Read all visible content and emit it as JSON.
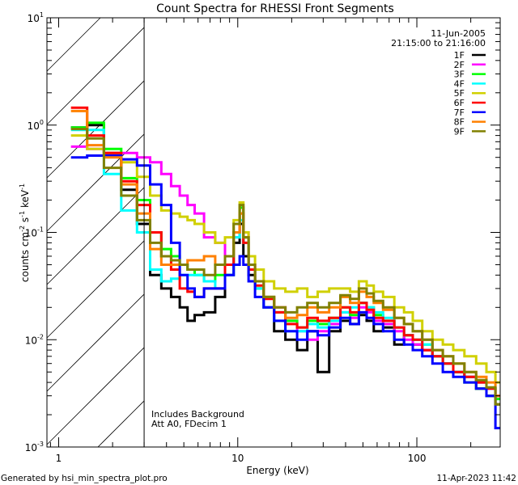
{
  "chart_data": {
    "type": "line",
    "title": "Count Spectra for RHESSI Front Segments",
    "xlabel": "Energy (keV)",
    "ylabel": "counts cm",
    "ylabel_parts": [
      "counts cm",
      "-2",
      " s",
      "-1",
      " keV",
      "-1"
    ],
    "xscale": "log",
    "yscale": "log",
    "xlim": [
      0.86,
      292
    ],
    "ylim": [
      0.001,
      10
    ],
    "xticks": [
      {
        "value": 1,
        "label": "1"
      },
      {
        "value": 10,
        "label": "10"
      },
      {
        "value": 100,
        "label": "100"
      }
    ],
    "yticks": [
      {
        "value": 10,
        "base": "10",
        "exp": "1"
      },
      {
        "value": 1,
        "base": "10",
        "exp": "0"
      },
      {
        "value": 0.1,
        "base": "10",
        "exp": "-1"
      },
      {
        "value": 0.01,
        "base": "10",
        "exp": "-2"
      },
      {
        "value": 0.001,
        "base": "10",
        "exp": "-3"
      }
    ],
    "shaded_region_xmax": 3,
    "date": "11-Jun-2005",
    "time_range": "21:15:00 to 21:16:00",
    "annotations": [
      "Includes Background",
      "Att A0, FDecim 1"
    ],
    "legend_position": "top-right",
    "energies": [
      1.3,
      1.6,
      2.0,
      2.5,
      3.0,
      3.5,
      4.0,
      4.5,
      5,
      5.5,
      6,
      7,
      8,
      9,
      10,
      10.5,
      11,
      12,
      13,
      15,
      17,
      20,
      23,
      26,
      30,
      35,
      40,
      45,
      50,
      55,
      60,
      70,
      80,
      90,
      100,
      115,
      130,
      150,
      170,
      200,
      230,
      260,
      290
    ],
    "series": [
      {
        "name": "1F",
        "color": "#000000",
        "values": [
          0.95,
          1.0,
          0.55,
          0.25,
          0.12,
          0.04,
          0.03,
          0.025,
          0.02,
          0.015,
          0.017,
          0.018,
          0.025,
          0.04,
          0.08,
          0.12,
          0.06,
          0.04,
          0.03,
          0.02,
          0.012,
          0.01,
          0.008,
          0.012,
          0.005,
          0.012,
          0.015,
          0.014,
          0.017,
          0.015,
          0.012,
          0.013,
          0.009,
          0.011,
          0.009,
          0.008,
          0.007,
          0.006,
          0.005,
          0.0045,
          0.0035,
          0.003,
          0.0025
        ]
      },
      {
        "name": "2F",
        "color": "#ff00ff",
        "values": [
          0.63,
          0.6,
          0.55,
          0.55,
          0.5,
          0.45,
          0.35,
          0.27,
          0.22,
          0.18,
          0.15,
          0.09,
          0.08,
          0.06,
          0.09,
          0.17,
          0.1,
          0.05,
          0.035,
          0.025,
          0.02,
          0.015,
          0.012,
          0.01,
          0.012,
          0.014,
          0.018,
          0.016,
          0.02,
          0.018,
          0.015,
          0.014,
          0.012,
          0.01,
          0.009,
          0.008,
          0.007,
          0.006,
          0.005,
          0.0045,
          0.004,
          0.0035,
          0.003
        ]
      },
      {
        "name": "3F",
        "color": "#00ff00",
        "values": [
          0.95,
          1.05,
          0.6,
          0.32,
          0.2,
          0.1,
          0.07,
          0.06,
          0.05,
          0.045,
          0.04,
          0.035,
          0.04,
          0.05,
          0.1,
          0.17,
          0.09,
          0.045,
          0.03,
          0.025,
          0.018,
          0.015,
          0.013,
          0.015,
          0.014,
          0.016,
          0.02,
          0.017,
          0.022,
          0.02,
          0.017,
          0.015,
          0.013,
          0.011,
          0.01,
          0.009,
          0.007,
          0.006,
          0.005,
          0.004,
          0.0035,
          0.003,
          0.0028
        ]
      },
      {
        "name": "4F",
        "color": "#00ffff",
        "values": [
          0.9,
          0.9,
          0.35,
          0.16,
          0.1,
          0.045,
          0.035,
          0.037,
          0.04,
          0.04,
          0.04,
          0.035,
          0.03,
          0.04,
          0.09,
          0.13,
          0.08,
          0.045,
          0.03,
          0.02,
          0.015,
          0.012,
          0.012,
          0.014,
          0.013,
          0.015,
          0.018,
          0.02,
          0.022,
          0.02,
          0.018,
          0.016,
          0.013,
          0.011,
          0.01,
          0.009,
          0.007,
          0.006,
          0.005,
          0.0045,
          0.004,
          0.0035,
          0.003
        ]
      },
      {
        "name": "5F",
        "color": "#d0d000",
        "values": [
          0.8,
          0.6,
          0.55,
          0.45,
          0.33,
          0.22,
          0.16,
          0.15,
          0.14,
          0.13,
          0.12,
          0.1,
          0.08,
          0.09,
          0.13,
          0.19,
          0.1,
          0.06,
          0.045,
          0.035,
          0.03,
          0.028,
          0.03,
          0.025,
          0.028,
          0.03,
          0.03,
          0.028,
          0.035,
          0.032,
          0.028,
          0.025,
          0.02,
          0.018,
          0.015,
          0.012,
          0.01,
          0.009,
          0.008,
          0.007,
          0.006,
          0.005,
          0.004
        ]
      },
      {
        "name": "6F",
        "color": "#ff0000",
        "values": [
          1.45,
          0.8,
          0.55,
          0.3,
          0.18,
          0.1,
          0.06,
          0.045,
          0.03,
          0.028,
          0.025,
          0.03,
          0.03,
          0.05,
          0.1,
          0.15,
          0.08,
          0.045,
          0.032,
          0.024,
          0.018,
          0.014,
          0.013,
          0.016,
          0.015,
          0.016,
          0.02,
          0.018,
          0.022,
          0.019,
          0.016,
          0.015,
          0.013,
          0.011,
          0.01,
          0.008,
          0.007,
          0.006,
          0.005,
          0.0045,
          0.004,
          0.0035,
          0.003
        ]
      },
      {
        "name": "7F",
        "color": "#0000ff",
        "values": [
          0.5,
          0.52,
          0.52,
          0.48,
          0.42,
          0.28,
          0.18,
          0.08,
          0.04,
          0.03,
          0.025,
          0.03,
          0.03,
          0.04,
          0.05,
          0.06,
          0.05,
          0.035,
          0.025,
          0.02,
          0.015,
          0.012,
          0.01,
          0.012,
          0.011,
          0.013,
          0.016,
          0.014,
          0.018,
          0.016,
          0.014,
          0.012,
          0.01,
          0.009,
          0.008,
          0.007,
          0.006,
          0.005,
          0.0045,
          0.004,
          0.0035,
          0.003,
          0.0015
        ]
      },
      {
        "name": "8F",
        "color": "#ff8000",
        "values": [
          1.35,
          0.65,
          0.5,
          0.28,
          0.15,
          0.07,
          0.05,
          0.05,
          0.05,
          0.055,
          0.055,
          0.06,
          0.05,
          0.06,
          0.1,
          0.15,
          0.09,
          0.05,
          0.035,
          0.025,
          0.02,
          0.016,
          0.017,
          0.02,
          0.018,
          0.02,
          0.025,
          0.022,
          0.028,
          0.025,
          0.022,
          0.019,
          0.016,
          0.014,
          0.012,
          0.01,
          0.008,
          0.007,
          0.006,
          0.005,
          0.0045,
          0.004,
          0.003
        ]
      },
      {
        "name": "9F",
        "color": "#808000",
        "values": [
          0.92,
          0.75,
          0.4,
          0.22,
          0.13,
          0.08,
          0.06,
          0.055,
          0.05,
          0.045,
          0.045,
          0.04,
          0.05,
          0.06,
          0.12,
          0.18,
          0.09,
          0.05,
          0.035,
          0.025,
          0.02,
          0.018,
          0.02,
          0.022,
          0.02,
          0.022,
          0.026,
          0.024,
          0.03,
          0.027,
          0.023,
          0.02,
          0.016,
          0.014,
          0.012,
          0.01,
          0.008,
          0.007,
          0.006,
          0.005,
          0.0042,
          0.0036,
          0.0025
        ]
      }
    ]
  },
  "footer": {
    "generated_by": "Generated by hsi_min_spectra_plot.pro",
    "timestamp": "11-Apr-2023 11:42"
  }
}
